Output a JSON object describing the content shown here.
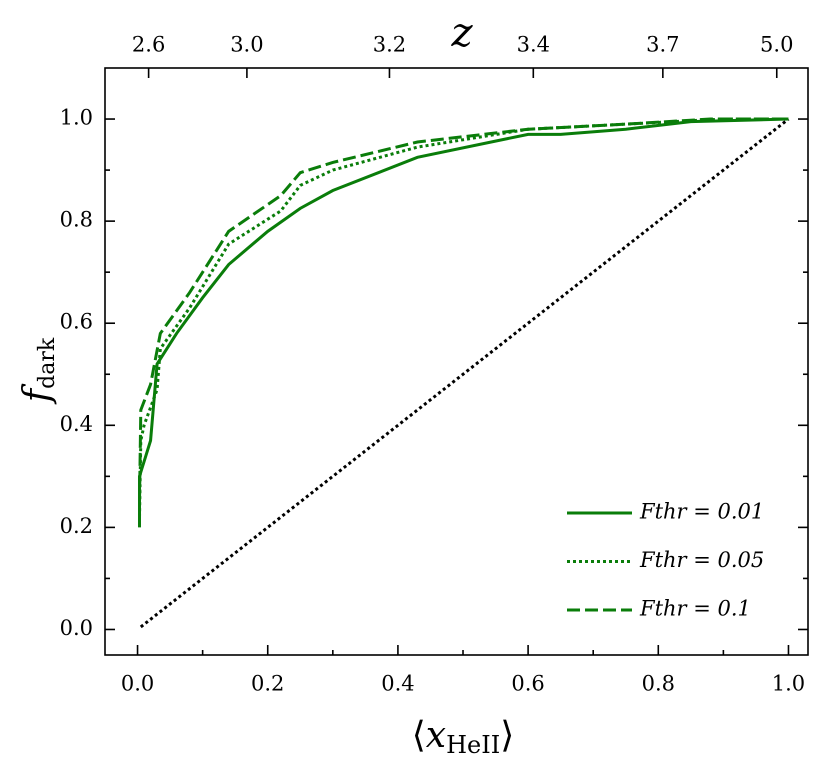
{
  "chart_data": {
    "type": "line",
    "x_label": {
      "left": "⟨",
      "main": "x",
      "sub": "HeII",
      "right": "⟩"
    },
    "y_label": {
      "main": "f",
      "sub": "dark"
    },
    "x2_label": "z",
    "xlim": [
      -0.05,
      1.03
    ],
    "ylim": [
      -0.05,
      1.1
    ],
    "xticks": [
      {
        "value": 0.0,
        "label": "0.0"
      },
      0.2,
      0.4,
      0.6,
      0.8,
      {
        "value": 1.0,
        "label": "1.0"
      }
    ],
    "yticks": [
      {
        "value": 0.0,
        "label": "0.0"
      },
      0.2,
      0.4,
      0.6,
      0.8,
      {
        "value": 1.0,
        "label": "1.0"
      }
    ],
    "xminorticks": [
      0.1,
      0.3,
      0.5,
      0.7,
      0.9
    ],
    "yminorticks": [
      0.1,
      0.3,
      0.5,
      0.7,
      0.9
    ],
    "x2ticks": [
      {
        "value": 0.017,
        "label": "2.6"
      },
      {
        "value": 0.168,
        "label": "3.0"
      },
      {
        "value": 0.387,
        "label": "3.2"
      },
      {
        "value": 0.608,
        "label": "3.4"
      },
      {
        "value": 0.807,
        "label": "3.7"
      },
      {
        "value": 0.982,
        "label": "5.0"
      }
    ],
    "legend": "lower right",
    "series": [
      {
        "name": "Fthr = 0.01",
        "color": "#0a7d0a",
        "linestyle": "solid",
        "x": [
          0.003,
          0.003,
          0.02,
          0.03,
          0.06,
          0.1,
          0.14,
          0.2,
          0.25,
          0.3,
          0.43,
          0.6,
          0.65,
          0.75,
          0.85,
          1.0
        ],
        "values": [
          0.2,
          0.3,
          0.37,
          0.52,
          0.58,
          0.65,
          0.715,
          0.78,
          0.825,
          0.86,
          0.925,
          0.97,
          0.97,
          0.98,
          0.995,
          1.0
        ]
      },
      {
        "name": "Fthr = 0.05",
        "color": "#0a7d0a",
        "linestyle": "dotted",
        "x": [
          0.003,
          0.005,
          0.01,
          0.03,
          0.035,
          0.08,
          0.14,
          0.22,
          0.25,
          0.3,
          0.43,
          0.6,
          0.75,
          0.9,
          1.0
        ],
        "values": [
          0.22,
          0.37,
          0.4,
          0.47,
          0.55,
          0.63,
          0.755,
          0.82,
          0.87,
          0.9,
          0.945,
          0.98,
          0.99,
          1.0,
          1.0
        ]
      },
      {
        "name": "Fthr = 0.1",
        "color": "#0a7d0a",
        "linestyle": "dashed",
        "x": [
          0.003,
          0.005,
          0.02,
          0.035,
          0.08,
          0.14,
          0.22,
          0.25,
          0.3,
          0.43,
          0.6,
          0.75,
          0.88,
          1.0
        ],
        "values": [
          0.25,
          0.43,
          0.48,
          0.58,
          0.66,
          0.78,
          0.85,
          0.895,
          0.915,
          0.955,
          0.98,
          0.99,
          1.0,
          1.0
        ]
      }
    ],
    "reference_line": {
      "color": "#000000",
      "linestyle": "dotted",
      "x": [
        0.005,
        1.0
      ],
      "values": [
        0.005,
        1.0
      ]
    }
  }
}
